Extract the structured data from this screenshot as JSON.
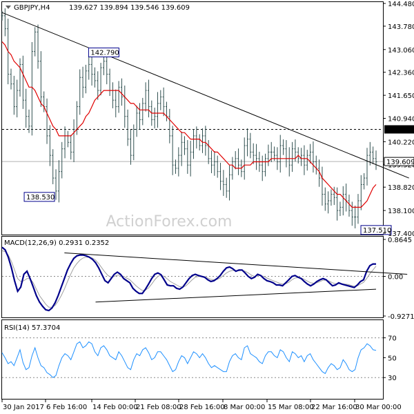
{
  "chart_data": {
    "type": "line",
    "header": {
      "symbol": "GBPJPY,H4",
      "ohlc": "139.627 139.894 139.546 139.609"
    },
    "watermark": "ActionForex.com",
    "colors": {
      "price": "#2f4f4f",
      "moving_average": "#e00000",
      "trendline": "#000000",
      "macd": "#00008b",
      "signal": "#a0a0a0",
      "rsi": "#1e90ff",
      "label_box": "#00008b",
      "grid": "#c0c0c0"
    },
    "x_labels": [
      "30 Jan 2017",
      "6 Feb 16:00",
      "14 Feb 00:00",
      "21 Feb 08:00",
      "28 Feb 16:00",
      "8 Mar 00:00",
      "15 Mar 08:00",
      "22 Mar 16:00",
      "30 Mar 00:00"
    ],
    "price_panel": {
      "y_ticks": [
        "144.480",
        "143.780",
        "143.060",
        "142.360",
        "141.650",
        "140.940",
        "140.220",
        "139.520",
        "138.820",
        "138.100",
        "137.400"
      ],
      "ylim": [
        137.4,
        144.48
      ],
      "reference_level": 140.6,
      "reference_label": "140.600",
      "current_value": 139.609,
      "current_label": "139.609",
      "annotations": [
        {
          "text": "142.790",
          "value": 142.79,
          "bar": 34
        },
        {
          "text": "138.530",
          "value": 138.53,
          "bar": 18
        },
        {
          "text": "137.510",
          "value": 137.51,
          "bar": 131
        }
      ],
      "trendline": [
        {
          "bar": 0,
          "value": 144.2
        },
        {
          "bar": 136,
          "value": 139.1
        }
      ],
      "close": [
        144.1,
        143.7,
        142.3,
        142.0,
        141.3,
        141.8,
        142.6,
        141.5,
        141.0,
        140.7,
        143.0,
        143.6,
        142.7,
        141.6,
        141.3,
        140.4,
        139.8,
        139.1,
        138.7,
        139.3,
        140.0,
        140.4,
        140.2,
        139.9,
        140.6,
        141.3,
        142.2,
        141.9,
        142.4,
        142.6,
        142.3,
        142.1,
        141.8,
        142.5,
        142.7,
        142.3,
        141.8,
        141.5,
        141.3,
        141.9,
        141.6,
        141.0,
        140.3,
        139.8,
        140.6,
        141.1,
        140.9,
        141.4,
        141.8,
        141.3,
        140.9,
        141.0,
        141.4,
        141.6,
        141.3,
        141.0,
        140.4,
        139.5,
        139.4,
        139.8,
        140.2,
        140.0,
        139.5,
        139.9,
        140.4,
        140.3,
        140.1,
        140.4,
        140.1,
        139.7,
        139.5,
        139.6,
        139.3,
        139.0,
        138.9,
        138.7,
        139.2,
        139.6,
        139.7,
        139.5,
        139.3,
        140.1,
        140.3,
        139.9,
        139.8,
        139.7,
        139.5,
        139.3,
        139.7,
        139.9,
        139.9,
        139.8,
        139.6,
        140.1,
        140.0,
        139.7,
        139.5,
        140.0,
        139.9,
        139.7,
        139.8,
        139.5,
        139.8,
        139.9,
        139.6,
        139.4,
        139.1,
        138.6,
        138.3,
        138.4,
        138.6,
        138.5,
        138.1,
        138.2,
        138.6,
        138.4,
        138.1,
        137.9,
        137.9,
        138.4,
        138.9,
        139.1,
        139.8,
        139.9,
        139.7,
        139.6
      ],
      "moving_average": [
        143.3,
        143.2,
        143.0,
        142.9,
        142.7,
        142.6,
        142.5,
        142.3,
        142.1,
        141.9,
        141.9,
        141.8,
        141.6,
        141.4,
        141.3,
        141.1,
        140.9,
        140.7,
        140.6,
        140.4,
        140.4,
        140.4,
        140.4,
        140.4,
        140.5,
        140.6,
        140.7,
        140.8,
        141.0,
        141.1,
        141.3,
        141.5,
        141.6,
        141.7,
        141.8,
        141.8,
        141.8,
        141.8,
        141.8,
        141.8,
        141.7,
        141.6,
        141.5,
        141.4,
        141.4,
        141.3,
        141.2,
        141.2,
        141.2,
        141.2,
        141.1,
        141.1,
        141.1,
        141.1,
        141.1,
        141.0,
        140.9,
        140.8,
        140.7,
        140.6,
        140.5,
        140.5,
        140.4,
        140.3,
        140.3,
        140.3,
        140.3,
        140.2,
        140.2,
        140.1,
        140.0,
        139.9,
        139.9,
        139.8,
        139.7,
        139.6,
        139.5,
        139.5,
        139.4,
        139.4,
        139.4,
        139.5,
        139.5,
        139.5,
        139.6,
        139.6,
        139.6,
        139.6,
        139.6,
        139.6,
        139.7,
        139.7,
        139.7,
        139.7,
        139.7,
        139.7,
        139.7,
        139.7,
        139.7,
        139.8,
        139.7,
        139.7,
        139.7,
        139.6,
        139.5,
        139.4,
        139.3,
        139.1,
        139.0,
        138.9,
        138.8,
        138.7,
        138.6,
        138.6,
        138.5,
        138.4,
        138.3,
        138.2,
        138.2,
        138.2,
        138.2,
        138.3,
        138.4,
        138.6,
        138.8,
        138.9
      ]
    },
    "macd_panel": {
      "title": "MACD(12,26,9) 0.2931 0.2352",
      "y_ticks": [
        "0.8645",
        "0.00",
        "-0.9271"
      ],
      "ylim": [
        -0.9271,
        0.8645
      ],
      "upper_trendline": [
        {
          "bar": 20,
          "value": 0.55
        },
        {
          "bar": 130,
          "value": 0.05
        }
      ],
      "lower_trendline": [
        {
          "bar": 30,
          "value": -0.6
        },
        {
          "bar": 140,
          "value": -0.3
        }
      ],
      "macd": [
        0.68,
        0.62,
        0.45,
        0.2,
        -0.1,
        -0.35,
        -0.25,
        0.05,
        0.12,
        -0.05,
        -0.25,
        -0.45,
        -0.6,
        -0.7,
        -0.78,
        -0.8,
        -0.74,
        -0.62,
        -0.45,
        -0.25,
        -0.05,
        0.15,
        0.3,
        0.42,
        0.48,
        0.5,
        0.5,
        0.48,
        0.45,
        0.4,
        0.32,
        0.2,
        0.05,
        -0.1,
        -0.15,
        -0.05,
        0.05,
        0.1,
        0.05,
        -0.05,
        -0.1,
        -0.15,
        -0.28,
        -0.35,
        -0.4,
        -0.4,
        -0.3,
        -0.18,
        -0.05,
        0.05,
        0.08,
        0.04,
        -0.08,
        -0.2,
        -0.22,
        -0.22,
        -0.28,
        -0.3,
        -0.25,
        -0.15,
        -0.05,
        0.02,
        0.05,
        0.02,
        0.0,
        -0.02,
        -0.08,
        -0.12,
        -0.1,
        -0.05,
        0.02,
        0.12,
        0.2,
        0.22,
        0.18,
        0.12,
        0.15,
        0.15,
        0.08,
        0.0,
        -0.05,
        -0.02,
        0.05,
        0.02,
        -0.05,
        -0.1,
        -0.12,
        -0.15,
        -0.2,
        -0.2,
        -0.22,
        -0.15,
        -0.08,
        0.0,
        0.02,
        -0.02,
        -0.05,
        -0.12,
        -0.18,
        -0.22,
        -0.18,
        -0.12,
        -0.08,
        -0.05,
        -0.08,
        -0.15,
        -0.22,
        -0.2,
        -0.15,
        -0.18,
        -0.2,
        -0.22,
        -0.24,
        -0.26,
        -0.2,
        -0.12,
        -0.08,
        0.12,
        0.25,
        0.29,
        0.29
      ],
      "signal": [
        0.6,
        0.58,
        0.5,
        0.35,
        0.15,
        -0.05,
        -0.12,
        -0.1,
        -0.05,
        -0.05,
        -0.15,
        -0.3,
        -0.45,
        -0.55,
        -0.65,
        -0.72,
        -0.72,
        -0.68,
        -0.58,
        -0.45,
        -0.3,
        -0.12,
        0.05,
        0.2,
        0.3,
        0.38,
        0.43,
        0.45,
        0.45,
        0.43,
        0.38,
        0.3,
        0.2,
        0.1,
        0.02,
        -0.02,
        0.0,
        0.03,
        0.03,
        0.0,
        -0.04,
        -0.08,
        -0.15,
        -0.22,
        -0.28,
        -0.33,
        -0.32,
        -0.27,
        -0.18,
        -0.08,
        0.0,
        0.03,
        0.0,
        -0.06,
        -0.12,
        -0.16,
        -0.2,
        -0.24,
        -0.25,
        -0.22,
        -0.15,
        -0.08,
        -0.02,
        0.0,
        0.0,
        -0.01,
        -0.04,
        -0.07,
        -0.08,
        -0.07,
        -0.04,
        0.02,
        0.08,
        0.12,
        0.14,
        0.13,
        0.13,
        0.14,
        0.12,
        0.08,
        0.03,
        0.0,
        0.02,
        0.02,
        0.0,
        -0.04,
        -0.07,
        -0.1,
        -0.13,
        -0.16,
        -0.18,
        -0.17,
        -0.14,
        -0.08,
        -0.04,
        -0.03,
        -0.04,
        -0.07,
        -0.11,
        -0.15,
        -0.16,
        -0.15,
        -0.12,
        -0.09,
        -0.09,
        -0.11,
        -0.15,
        -0.17,
        -0.17,
        -0.17,
        -0.18,
        -0.19,
        -0.21,
        -0.23,
        -0.22,
        -0.18,
        -0.14,
        -0.05,
        0.06,
        0.15,
        0.24
      ]
    },
    "rsi_panel": {
      "title": "RSI(14) 57.3704",
      "y_ticks": [
        "70",
        "50",
        "30"
      ],
      "ylim": [
        10,
        85
      ],
      "levels": [
        70,
        30
      ],
      "rsi": [
        55,
        50,
        44,
        46,
        42,
        50,
        58,
        45,
        38,
        40,
        52,
        60,
        50,
        42,
        40,
        35,
        33,
        30,
        32,
        42,
        50,
        54,
        52,
        48,
        56,
        64,
        66,
        60,
        62,
        66,
        64,
        56,
        52,
        60,
        62,
        58,
        52,
        50,
        48,
        56,
        52,
        46,
        40,
        38,
        48,
        54,
        52,
        58,
        60,
        55,
        48,
        50,
        56,
        56,
        52,
        48,
        42,
        36,
        38,
        46,
        52,
        50,
        44,
        50,
        56,
        54,
        50,
        54,
        50,
        44,
        40,
        42,
        40,
        38,
        36,
        36,
        46,
        52,
        54,
        50,
        48,
        60,
        62,
        54,
        52,
        50,
        46,
        44,
        52,
        56,
        56,
        52,
        50,
        58,
        56,
        50,
        46,
        56,
        54,
        50,
        52,
        46,
        52,
        54,
        48,
        44,
        40,
        36,
        34,
        40,
        44,
        42,
        38,
        40,
        48,
        44,
        38,
        36,
        38,
        50,
        58,
        60,
        64,
        62,
        58,
        57.37
      ]
    }
  }
}
